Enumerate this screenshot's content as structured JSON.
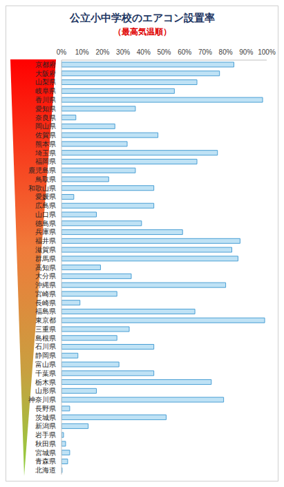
{
  "chart_data": {
    "type": "bar",
    "title": "公立小中学校のエアコン設置率",
    "subtitle": "（最高気温順）",
    "orientation": "horizontal",
    "categories": [
      "京都府",
      "大阪府",
      "山梨県",
      "岐阜県",
      "香川県",
      "愛知県",
      "奈良県",
      "岡山県",
      "佐賀県",
      "熊本県",
      "埼玉県",
      "福岡県",
      "鹿児島県",
      "鳥取県",
      "和歌山県",
      "愛媛県",
      "広島県",
      "山口県",
      "徳島県",
      "兵庫県",
      "福井県",
      "滋賀県",
      "群馬県",
      "高知県",
      "大分県",
      "沖縄県",
      "宮崎県",
      "長崎県",
      "福島県",
      "東京都",
      "三重県",
      "島根県",
      "石川県",
      "静岡県",
      "富山県",
      "千葉県",
      "栃木県",
      "山形県",
      "神奈川県",
      "長野県",
      "茨城県",
      "新潟県",
      "岩手県",
      "秋田県",
      "宮城県",
      "青森県",
      "北海道"
    ],
    "values": [
      84,
      77,
      66,
      55,
      98,
      36,
      7,
      26,
      47,
      32,
      76,
      66,
      36,
      23,
      45,
      6,
      45,
      17,
      39,
      59,
      87,
      83,
      86,
      19,
      34,
      80,
      27,
      9,
      65,
      99,
      33,
      27,
      45,
      8,
      28,
      45,
      73,
      17,
      79,
      4,
      51,
      13,
      1,
      2,
      4,
      3,
      0.3
    ],
    "color": "#bfe2f5",
    "xlim": [
      0,
      100
    ],
    "xticks": [
      {
        "value": 0,
        "label": "0%"
      },
      {
        "value": 10,
        "label": "10%"
      },
      {
        "value": 20,
        "label": "20%"
      },
      {
        "value": 30,
        "label": "30%"
      },
      {
        "value": 40,
        "label": "40%"
      },
      {
        "value": 50,
        "label": "50%"
      },
      {
        "value": 60,
        "label": "60%"
      },
      {
        "value": 70,
        "label": "70%"
      },
      {
        "value": 80,
        "label": "80%"
      },
      {
        "value": 90,
        "label": "90%"
      },
      {
        "value": 100,
        "label": "100%"
      }
    ],
    "grid": false
  }
}
